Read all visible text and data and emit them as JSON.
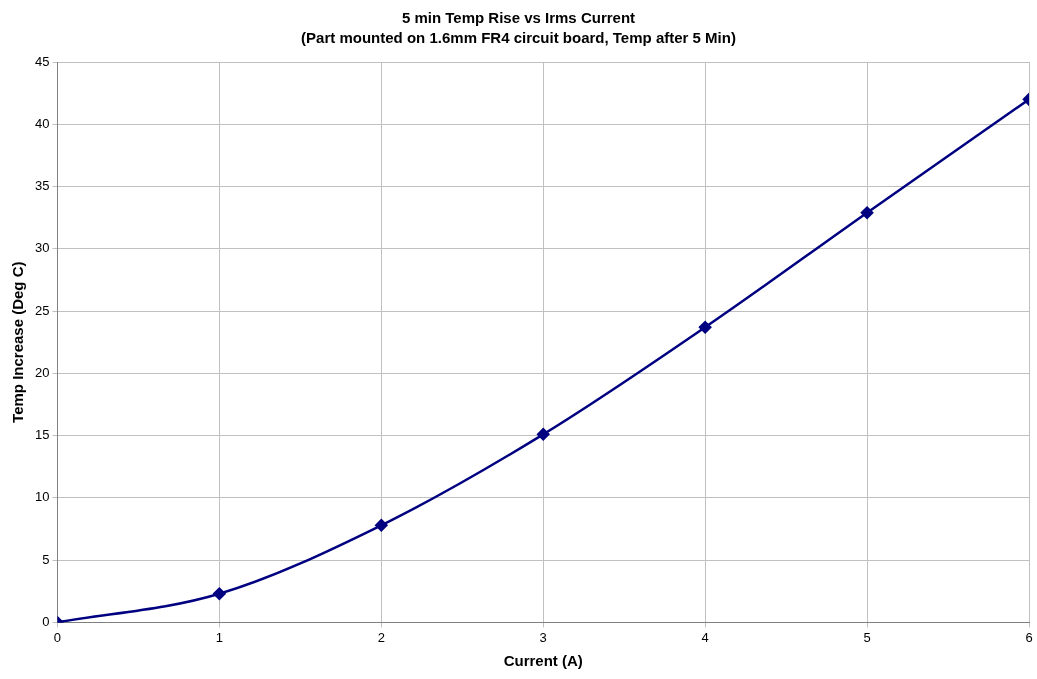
{
  "chart_data": {
    "type": "line",
    "title": "5 min Temp Rise vs Irms Current",
    "subtitle": "(Part mounted on 1.6mm FR4 circuit board, Temp after 5 Min)",
    "xlabel": "Current (A)",
    "ylabel": "Temp Increase (Deg C)",
    "x": [
      0,
      1,
      2,
      3,
      4,
      5,
      6
    ],
    "series": [
      {
        "color": "#000080",
        "values": [
          0,
          2.3,
          7.8,
          15.1,
          23.7,
          32.9,
          42
        ]
      }
    ],
    "xlim": [
      0,
      6
    ],
    "xticks": [
      0,
      1,
      2,
      3,
      4,
      5,
      6
    ],
    "ylim": [
      0,
      45
    ],
    "yticks": [
      0,
      5,
      10,
      15,
      20,
      25,
      30,
      35,
      40,
      45
    ],
    "grid": true,
    "legend": false,
    "marker": "diamond",
    "line_style": "solid"
  }
}
